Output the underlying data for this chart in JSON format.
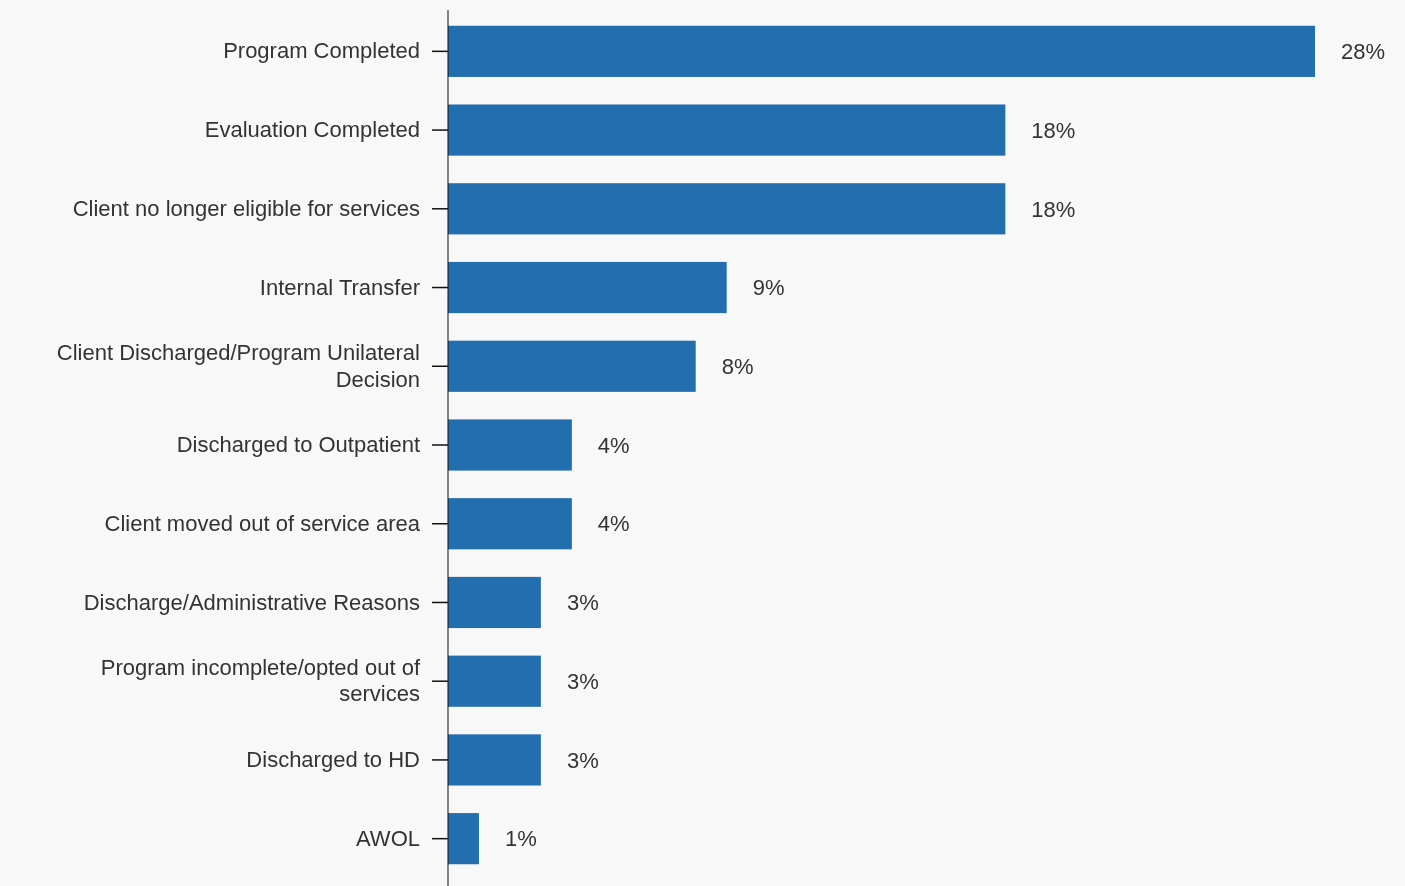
{
  "chart_data": {
    "type": "bar",
    "orientation": "horizontal",
    "categories": [
      "Program Completed",
      "Evaluation Completed",
      "Client no longer eligible for services",
      "Internal Transfer",
      "Client Discharged/Program Unilateral Decision",
      "Discharged to Outpatient",
      "Client moved out of service area",
      "Discharge/Administrative Reasons",
      "Program incomplete/opted out of services",
      "Discharged to HD",
      "AWOL"
    ],
    "values": [
      28,
      18,
      18,
      9,
      8,
      4,
      4,
      3,
      3,
      3,
      1
    ],
    "value_labels": [
      "28%",
      "18%",
      "18%",
      "9%",
      "8%",
      "4%",
      "4%",
      "3%",
      "3%",
      "3%",
      "1%"
    ],
    "color": "#236eaf"
  }
}
